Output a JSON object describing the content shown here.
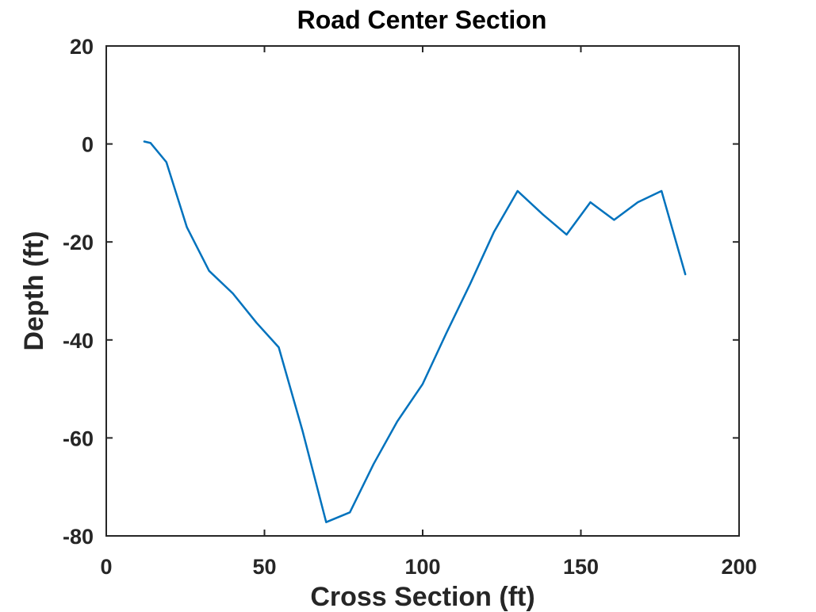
{
  "chart_data": {
    "type": "line",
    "title": "Road Center Section",
    "xlabel": "Cross Section (ft)",
    "ylabel": "Depth (ft)",
    "xlim": [
      0,
      200
    ],
    "ylim": [
      -80,
      20
    ],
    "xticks": [
      0,
      50,
      100,
      150,
      200
    ],
    "yticks": [
      -80,
      -60,
      -40,
      -20,
      0,
      20
    ],
    "grid": false,
    "line_color": "#0072BD",
    "axis_color": "#262626",
    "series": [
      {
        "x": [
          12,
          14,
          19,
          25.5,
          32.5,
          40,
          47.5,
          54.5,
          62,
          69.5,
          77,
          84.5,
          92,
          100,
          107.5,
          115,
          122.5,
          130,
          138,
          145.5,
          153,
          160.5,
          168,
          175.5,
          183
        ],
        "y": [
          0.5,
          0.2,
          -3.7,
          -17,
          -25.9,
          -30.5,
          -36.5,
          -41.5,
          -58.5,
          -77.2,
          -75.2,
          -65.3,
          -56.6,
          -49,
          -38.6,
          -28.6,
          -18,
          -9.6,
          -14.4,
          -18.5,
          -11.9,
          -15.5,
          -11.9,
          -9.6,
          -26.6
        ]
      }
    ]
  }
}
